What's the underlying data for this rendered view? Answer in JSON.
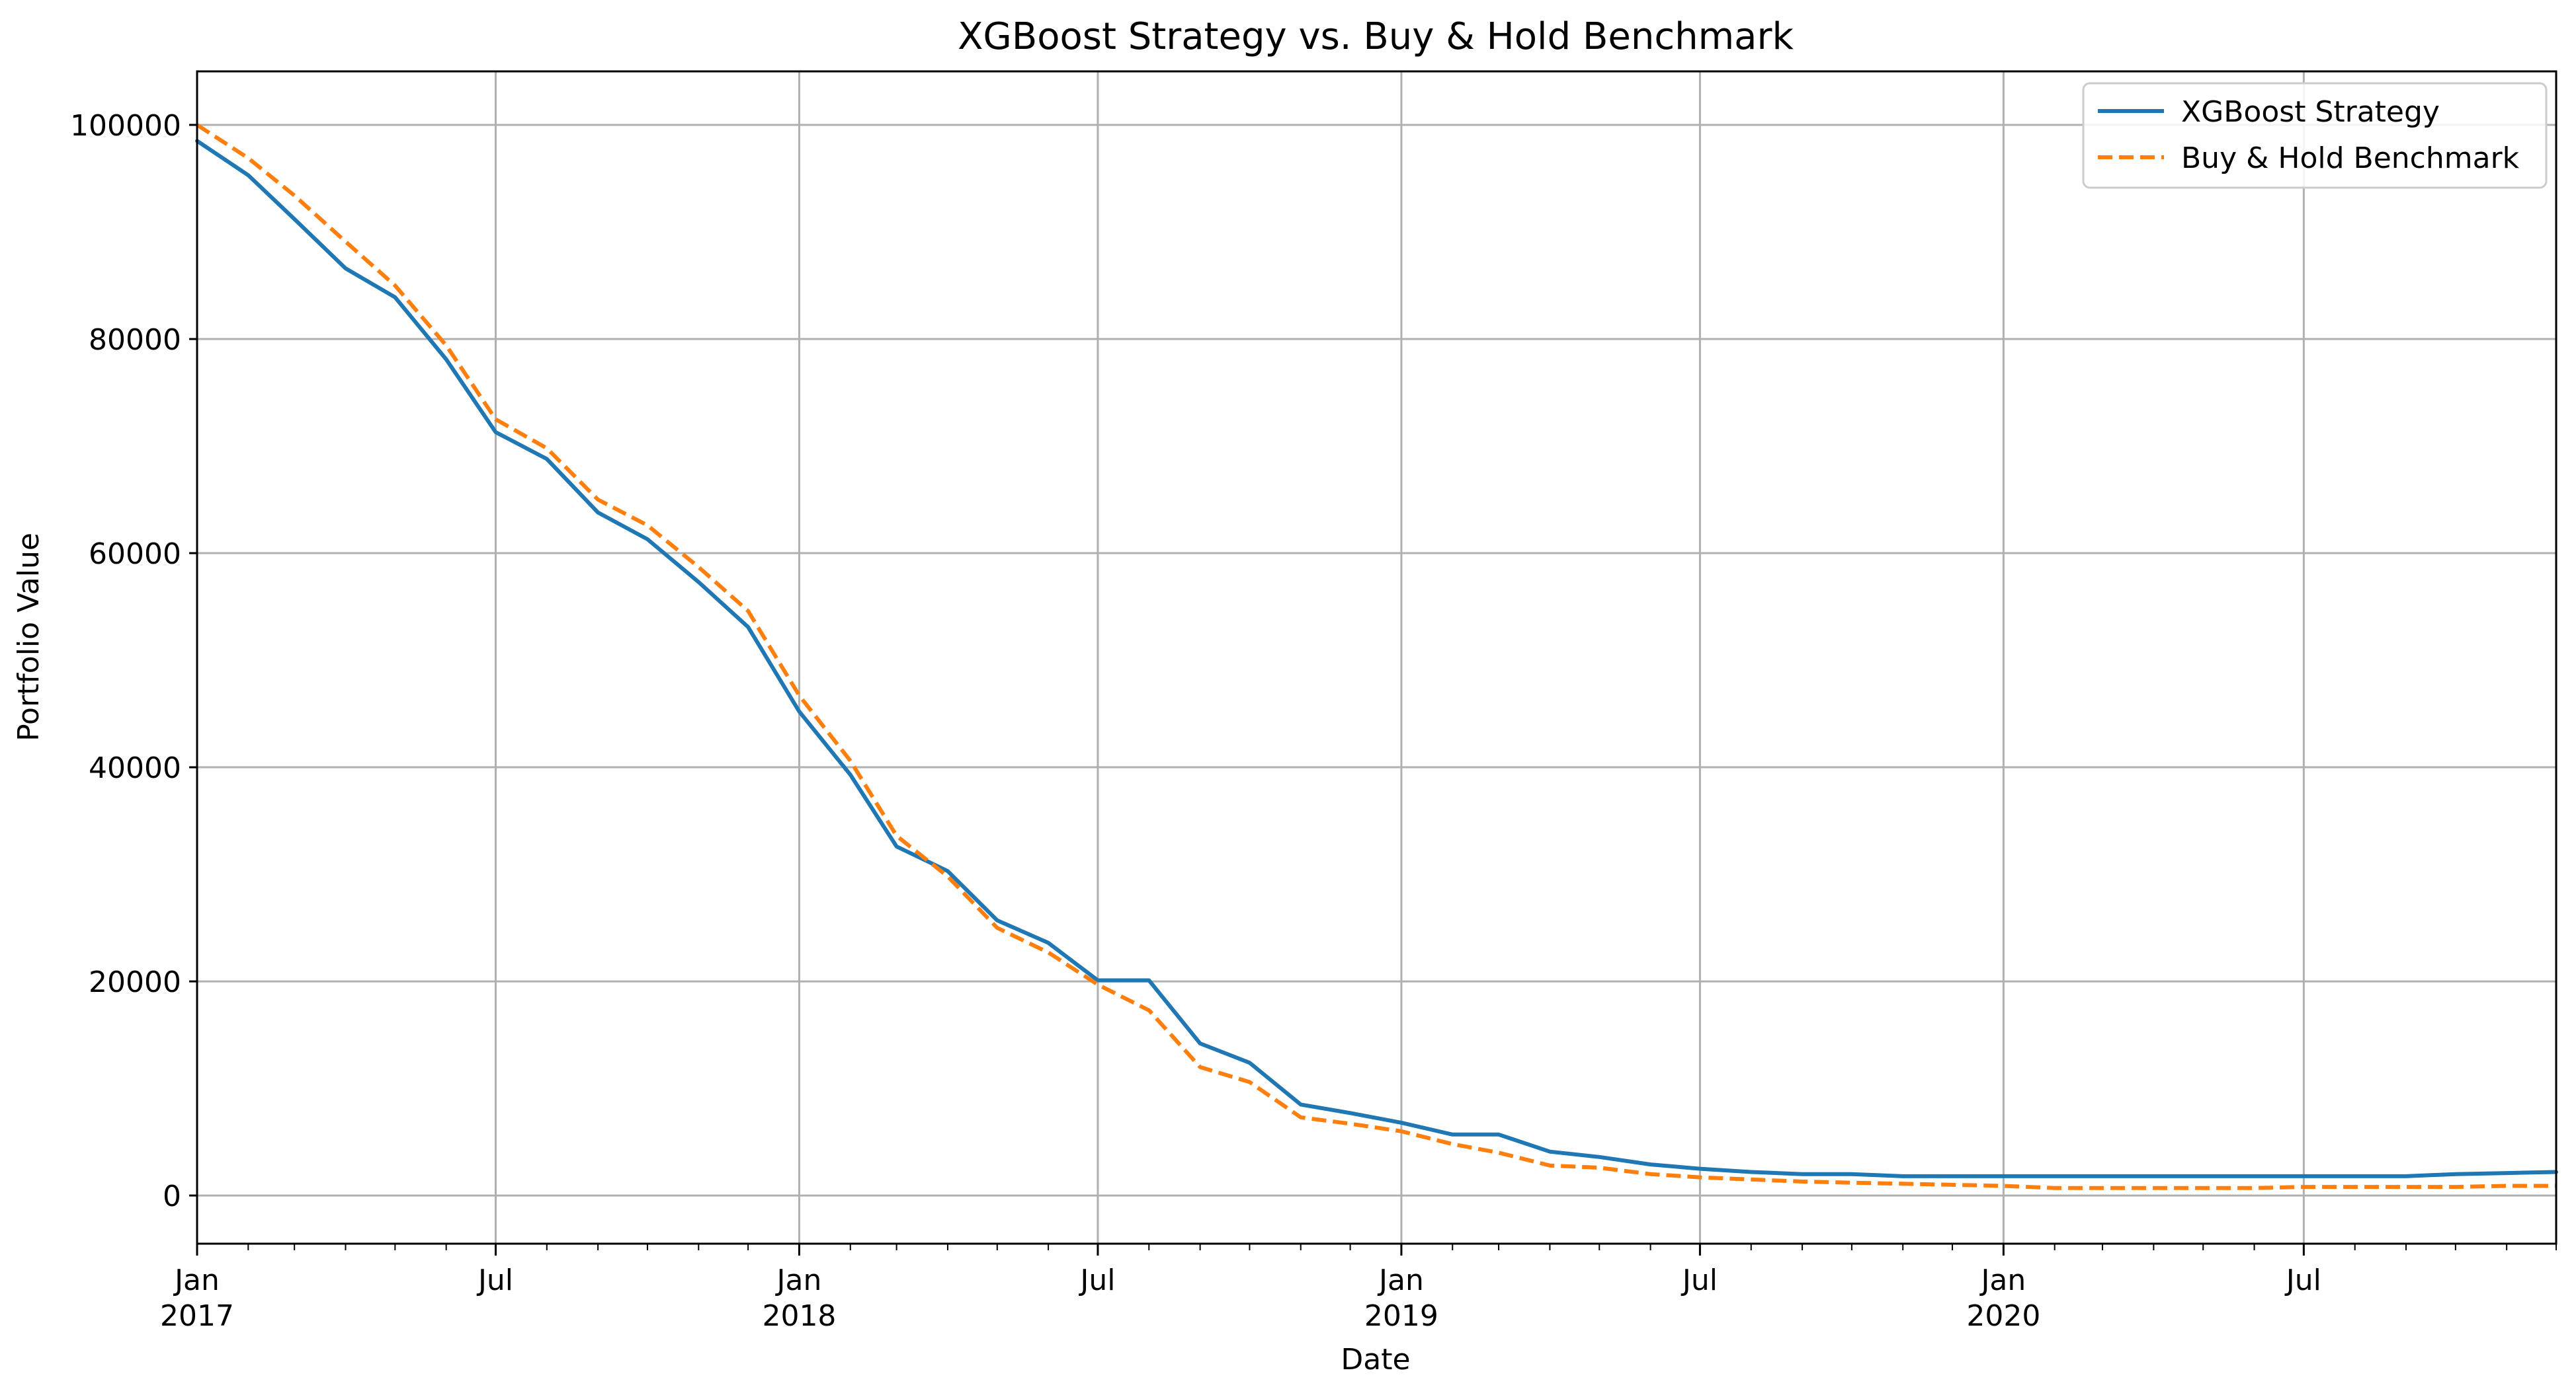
{
  "chart_data": {
    "type": "line",
    "title": "XGBoost Strategy vs. Buy & Hold Benchmark",
    "xlabel": "Date",
    "ylabel": "Portfolio Value",
    "xlim": [
      "2017-01-01",
      "2020-12-01"
    ],
    "ylim": [
      -4500,
      105000
    ],
    "grid": true,
    "legend_position": "top-right",
    "y_ticks": [
      {
        "value": 0,
        "label": "0"
      },
      {
        "value": 20000,
        "label": "20000"
      },
      {
        "value": 40000,
        "label": "40000"
      },
      {
        "value": 60000,
        "label": "60000"
      },
      {
        "value": 80000,
        "label": "80000"
      },
      {
        "value": 100000,
        "label": "100000"
      }
    ],
    "x_major_ticks": [
      {
        "date": "2017-01-01",
        "label": "Jan",
        "year": "2017"
      },
      {
        "date": "2017-07-01",
        "label": "Jul",
        "year": ""
      },
      {
        "date": "2018-01-01",
        "label": "Jan",
        "year": "2018"
      },
      {
        "date": "2018-07-01",
        "label": "Jul",
        "year": ""
      },
      {
        "date": "2019-01-01",
        "label": "Jan",
        "year": "2019"
      },
      {
        "date": "2019-07-01",
        "label": "Jul",
        "year": ""
      },
      {
        "date": "2020-01-01",
        "label": "Jan",
        "year": "2020"
      },
      {
        "date": "2020-07-01",
        "label": "Jul",
        "year": ""
      }
    ],
    "x": [
      "2017-01-01",
      "2017-02-01",
      "2017-03-01",
      "2017-04-01",
      "2017-05-01",
      "2017-06-01",
      "2017-07-01",
      "2017-08-01",
      "2017-09-01",
      "2017-10-01",
      "2017-11-01",
      "2017-12-01",
      "2018-01-01",
      "2018-02-01",
      "2018-03-01",
      "2018-04-01",
      "2018-05-01",
      "2018-06-01",
      "2018-07-01",
      "2018-08-01",
      "2018-09-01",
      "2018-10-01",
      "2018-11-01",
      "2018-12-01",
      "2019-01-01",
      "2019-02-01",
      "2019-03-01",
      "2019-04-01",
      "2019-05-01",
      "2019-06-01",
      "2019-07-01",
      "2019-08-01",
      "2019-09-01",
      "2019-10-01",
      "2019-11-01",
      "2019-12-01",
      "2020-01-01",
      "2020-02-01",
      "2020-03-01",
      "2020-04-01",
      "2020-05-01",
      "2020-06-01",
      "2020-07-01",
      "2020-08-01",
      "2020-09-01",
      "2020-10-01",
      "2020-11-01",
      "2020-12-01"
    ],
    "series": [
      {
        "name": "XGBoost Strategy",
        "color": "#1f77b4",
        "style": "solid",
        "values": [
          98500,
          95300,
          91200,
          86600,
          83900,
          78100,
          71300,
          68800,
          63800,
          61300,
          57300,
          53100,
          45200,
          39300,
          32600,
          30300,
          25700,
          23600,
          20100,
          20100,
          14200,
          12400,
          8500,
          7700,
          6800,
          5700,
          5700,
          4100,
          3600,
          2900,
          2500,
          2200,
          2000,
          2000,
          1800,
          1800,
          1800,
          1800,
          1800,
          1800,
          1800,
          1800,
          1800,
          1800,
          1800,
          2000,
          2100,
          2200
        ]
      },
      {
        "name": "Buy & Hold Benchmark",
        "color": "#ff7f0e",
        "style": "dashed",
        "values": [
          100000,
          96900,
          93400,
          89100,
          85000,
          79400,
          72500,
          69800,
          65000,
          62600,
          58700,
          54600,
          46700,
          40600,
          33600,
          29800,
          25000,
          22700,
          19700,
          17300,
          12000,
          10600,
          7300,
          6700,
          6000,
          4800,
          4000,
          2800,
          2600,
          2000,
          1700,
          1500,
          1300,
          1200,
          1100,
          1000,
          900,
          700,
          700,
          700,
          700,
          700,
          800,
          800,
          800,
          800,
          900,
          900
        ]
      }
    ]
  }
}
